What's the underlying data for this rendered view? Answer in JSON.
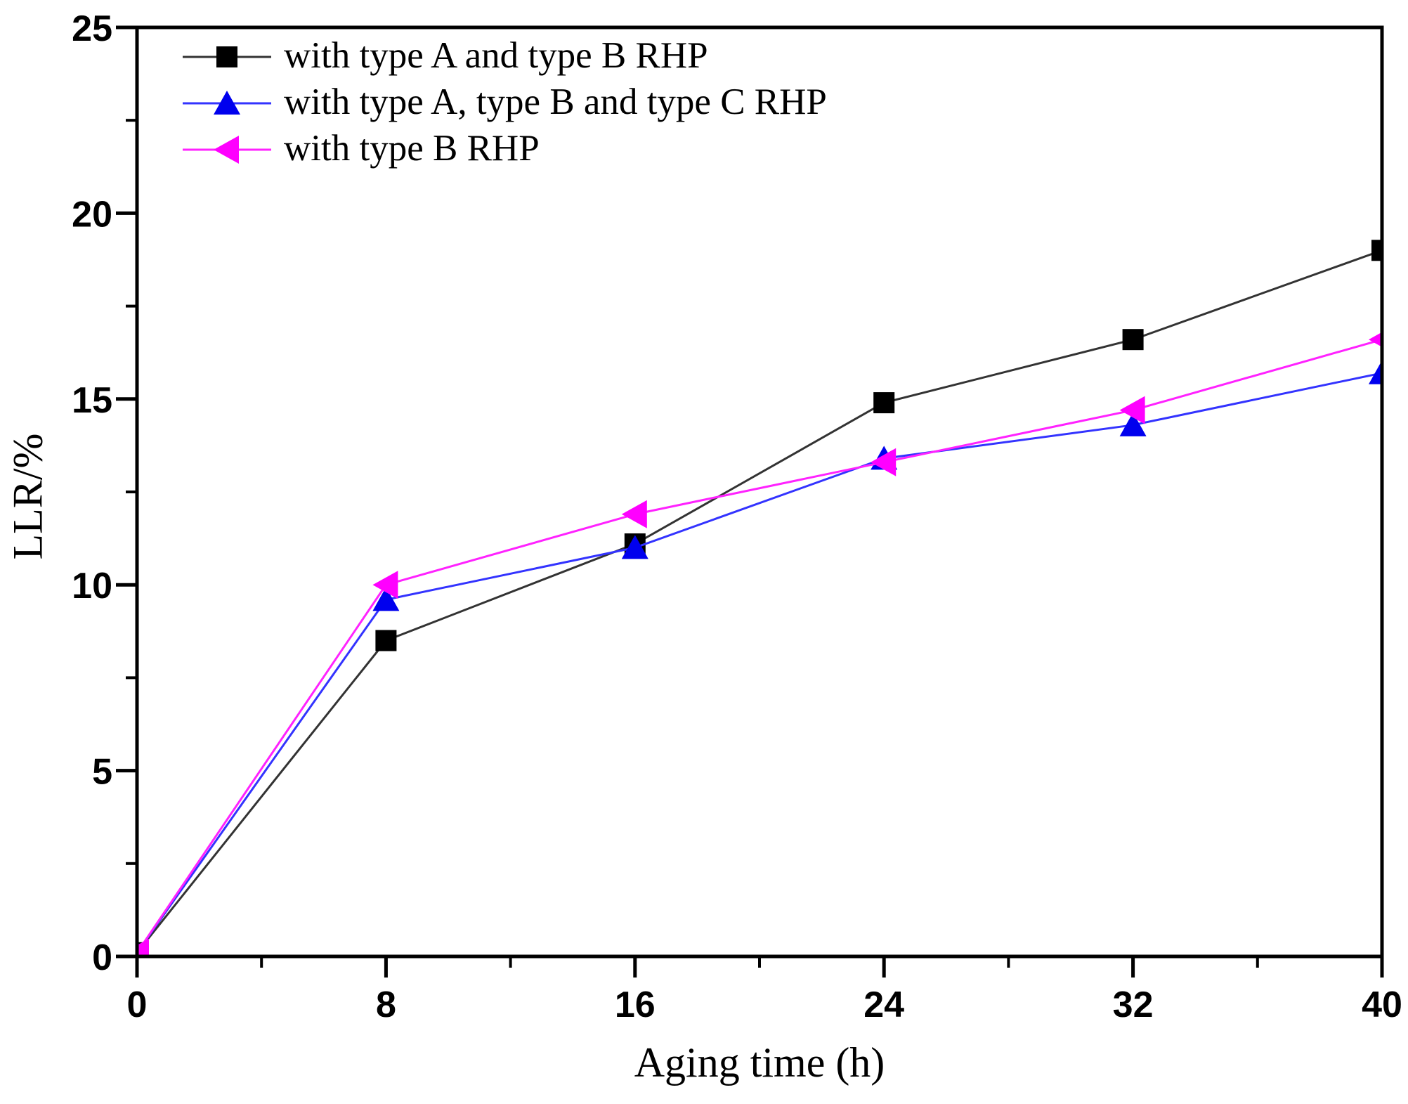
{
  "figure": {
    "background": "#ffffff",
    "axis_color": "#000000"
  },
  "chart_data": {
    "type": "line",
    "title": "",
    "xlabel": "Aging time (h)",
    "ylabel": "LLR/%",
    "xlim": [
      0,
      40
    ],
    "ylim": [
      0,
      25
    ],
    "grid": false,
    "legend_position": "top-left-inside",
    "x": [
      0,
      8,
      16,
      24,
      32,
      40
    ],
    "x_major_ticks": [
      "0",
      "8",
      "16",
      "24",
      "32",
      "40"
    ],
    "x_minor_ticks": [
      4,
      12,
      20,
      28,
      36
    ],
    "y_major_ticks": [
      "0",
      "5",
      "10",
      "15",
      "20",
      "25"
    ],
    "y_minor_ticks": [
      2.5,
      7.5,
      12.5,
      17.5,
      22.5
    ],
    "series": [
      {
        "name": "with type A and type B RHP",
        "marker": "square",
        "marker_color": "#000000",
        "line_color": "#333333",
        "values": [
          0.1,
          8.5,
          11.1,
          14.9,
          16.6,
          19.0
        ]
      },
      {
        "name": "with type A, type B and type C RHP",
        "marker": "triangle-up",
        "marker_color": "#0000ee",
        "line_color": "#3333ff",
        "values": [
          0.1,
          9.6,
          11.0,
          13.4,
          14.3,
          15.7
        ]
      },
      {
        "name": "with type B RHP",
        "marker": "triangle-left",
        "marker_color": "#ff00ff",
        "line_color": "#ff22ff",
        "values": [
          0.1,
          10.0,
          11.9,
          13.3,
          14.7,
          16.6
        ]
      }
    ]
  }
}
